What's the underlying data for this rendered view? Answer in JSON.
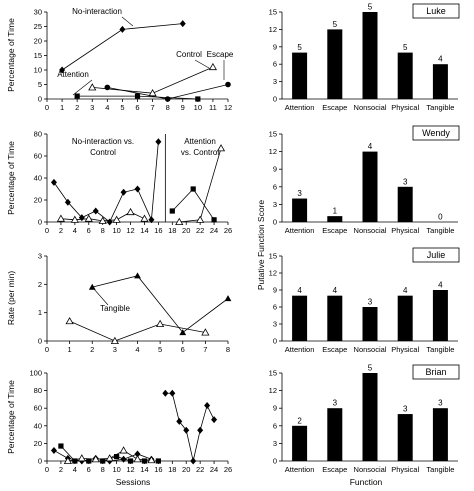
{
  "labels": {
    "left_x_axis": "Sessions",
    "right_x_axis": "Function",
    "right_y_axis": "Putative Function Score"
  },
  "chart_data": [
    {
      "type": "line",
      "participant": "Luke",
      "ylabel": "Percentage of Time",
      "xlim": [
        0,
        12
      ],
      "ylim": [
        0,
        30
      ],
      "xticks": [
        0,
        1,
        2,
        3,
        4,
        5,
        6,
        7,
        8,
        9,
        10,
        11,
        12
      ],
      "yticks": [
        0,
        5,
        10,
        15,
        20,
        25,
        30
      ],
      "series": [
        {
          "name": "No-interaction",
          "marker": "diamond",
          "x": [
            1,
            5,
            9
          ],
          "y": [
            10,
            24,
            26
          ]
        },
        {
          "name": "Attention",
          "marker": "square",
          "x": [
            2,
            6,
            10
          ],
          "y": [
            1,
            1,
            0
          ]
        },
        {
          "marker": "triangle",
          "x": [
            3,
            7,
            11
          ],
          "y": [
            4,
            2,
            11
          ]
        },
        {
          "name": "Escape",
          "marker": "circle",
          "x": [
            4,
            8,
            12
          ],
          "y": [
            4,
            0,
            5
          ]
        }
      ],
      "annotations": [
        "No-interaction",
        "Attention",
        "Control",
        "Escape"
      ]
    },
    {
      "type": "line",
      "participant": "Wendy",
      "ylabel": "Percentage of Time",
      "xlim": [
        0,
        26
      ],
      "ylim": [
        0,
        80
      ],
      "xticks": [
        0,
        2,
        4,
        6,
        8,
        10,
        12,
        14,
        16,
        18,
        20,
        22,
        24,
        26
      ],
      "yticks": [
        0,
        20,
        40,
        60,
        80
      ],
      "phase_line_x": 17,
      "phase_labels": [
        "No-interaction vs.",
        "Control",
        "Attention",
        "vs. Control"
      ],
      "series": [
        {
          "marker": "diamond",
          "x": [
            1,
            3,
            5,
            7,
            9,
            11,
            13,
            15,
            16
          ],
          "y": [
            36,
            18,
            4,
            10,
            0,
            27,
            30,
            2,
            73
          ]
        },
        {
          "marker": "triangle",
          "x": [
            2,
            4,
            6,
            8,
            10,
            12,
            14
          ],
          "y": [
            3,
            2,
            3,
            1,
            2,
            9,
            3
          ]
        },
        {
          "marker": "square",
          "x": [
            18,
            21,
            24
          ],
          "y": [
            10,
            30,
            2
          ]
        },
        {
          "marker": "triangle",
          "x": [
            19,
            22,
            25
          ],
          "y": [
            0,
            2,
            67
          ]
        }
      ]
    },
    {
      "type": "line",
      "participant": "Julie",
      "ylabel": "Rate (per min)",
      "xlim": [
        0,
        8
      ],
      "ylim": [
        0,
        3
      ],
      "xticks": [
        0,
        1,
        2,
        3,
        4,
        5,
        6,
        7,
        8
      ],
      "yticks": [
        0,
        1,
        2,
        3
      ],
      "series": [
        {
          "name": "Tangible",
          "marker": "triangle-filled",
          "x": [
            2,
            4,
            6,
            8
          ],
          "y": [
            1.9,
            2.3,
            0.3,
            1.5
          ]
        },
        {
          "marker": "triangle",
          "x": [
            1,
            3,
            5,
            7
          ],
          "y": [
            0.7,
            0,
            0.6,
            0.3
          ]
        }
      ],
      "annotations": [
        "Tangible"
      ]
    },
    {
      "type": "line",
      "participant": "Brian",
      "ylabel": "Percentage of Time",
      "xlim": [
        0,
        26
      ],
      "ylim": [
        0,
        100
      ],
      "xticks": [
        0,
        2,
        4,
        6,
        8,
        10,
        12,
        14,
        16,
        18,
        20,
        22,
        24,
        26
      ],
      "yticks": [
        0,
        20,
        40,
        60,
        80,
        100
      ],
      "series": [
        {
          "marker": "diamond",
          "x": [
            1,
            3,
            5,
            7,
            9,
            11,
            13,
            15
          ],
          "y": [
            12,
            3,
            0,
            3,
            0,
            2,
            8,
            2
          ]
        },
        {
          "marker": "square",
          "x": [
            2,
            4,
            6,
            8,
            10,
            12,
            14,
            16
          ],
          "y": [
            17,
            0,
            0,
            0,
            5,
            0,
            0,
            0
          ]
        },
        {
          "marker": "triangle",
          "x": [
            3,
            5,
            7,
            9,
            11,
            13,
            15
          ],
          "y": [
            0,
            3,
            2,
            3,
            12,
            2,
            1
          ]
        },
        {
          "marker": "diamond",
          "x": [
            17,
            18,
            19,
            20,
            21,
            22,
            23,
            24
          ],
          "y": [
            77,
            77,
            45,
            35,
            0,
            35,
            63,
            47
          ]
        }
      ]
    },
    {
      "type": "bar",
      "participant": "Luke",
      "categories": [
        "Attention",
        "Escape",
        "Nonsocial",
        "Physical",
        "Tangible"
      ],
      "values": [
        8,
        12,
        15,
        8,
        6
      ],
      "labels": [
        5,
        5,
        5,
        5,
        4
      ],
      "ylim": [
        0,
        15
      ],
      "yticks": [
        0,
        3,
        6,
        9,
        12,
        15
      ]
    },
    {
      "type": "bar",
      "participant": "Wendy",
      "categories": [
        "Attention",
        "Escape",
        "Nonsocial",
        "Physical",
        "Tangible"
      ],
      "values": [
        4,
        1,
        12,
        6,
        0
      ],
      "labels": [
        3,
        1,
        4,
        3,
        0
      ],
      "ylim": [
        0,
        15
      ],
      "yticks": [
        0,
        3,
        6,
        9,
        12,
        15
      ]
    },
    {
      "type": "bar",
      "participant": "Julie",
      "categories": [
        "Attention",
        "Escape",
        "Nonsocial",
        "Physical",
        "Tangible"
      ],
      "values": [
        8,
        8,
        6,
        8,
        9
      ],
      "labels": [
        4,
        4,
        3,
        4,
        4
      ],
      "ylim": [
        0,
        15
      ],
      "yticks": [
        0,
        3,
        6,
        9,
        12,
        15
      ]
    },
    {
      "type": "bar",
      "participant": "Brian",
      "categories": [
        "Attention",
        "Escape",
        "Nonsocial",
        "Physical",
        "Tangible"
      ],
      "values": [
        6,
        9,
        15,
        8,
        9
      ],
      "labels": [
        2,
        3,
        5,
        3,
        3
      ],
      "ylim": [
        0,
        15
      ],
      "yticks": [
        0,
        3,
        6,
        9,
        12,
        15
      ]
    }
  ]
}
